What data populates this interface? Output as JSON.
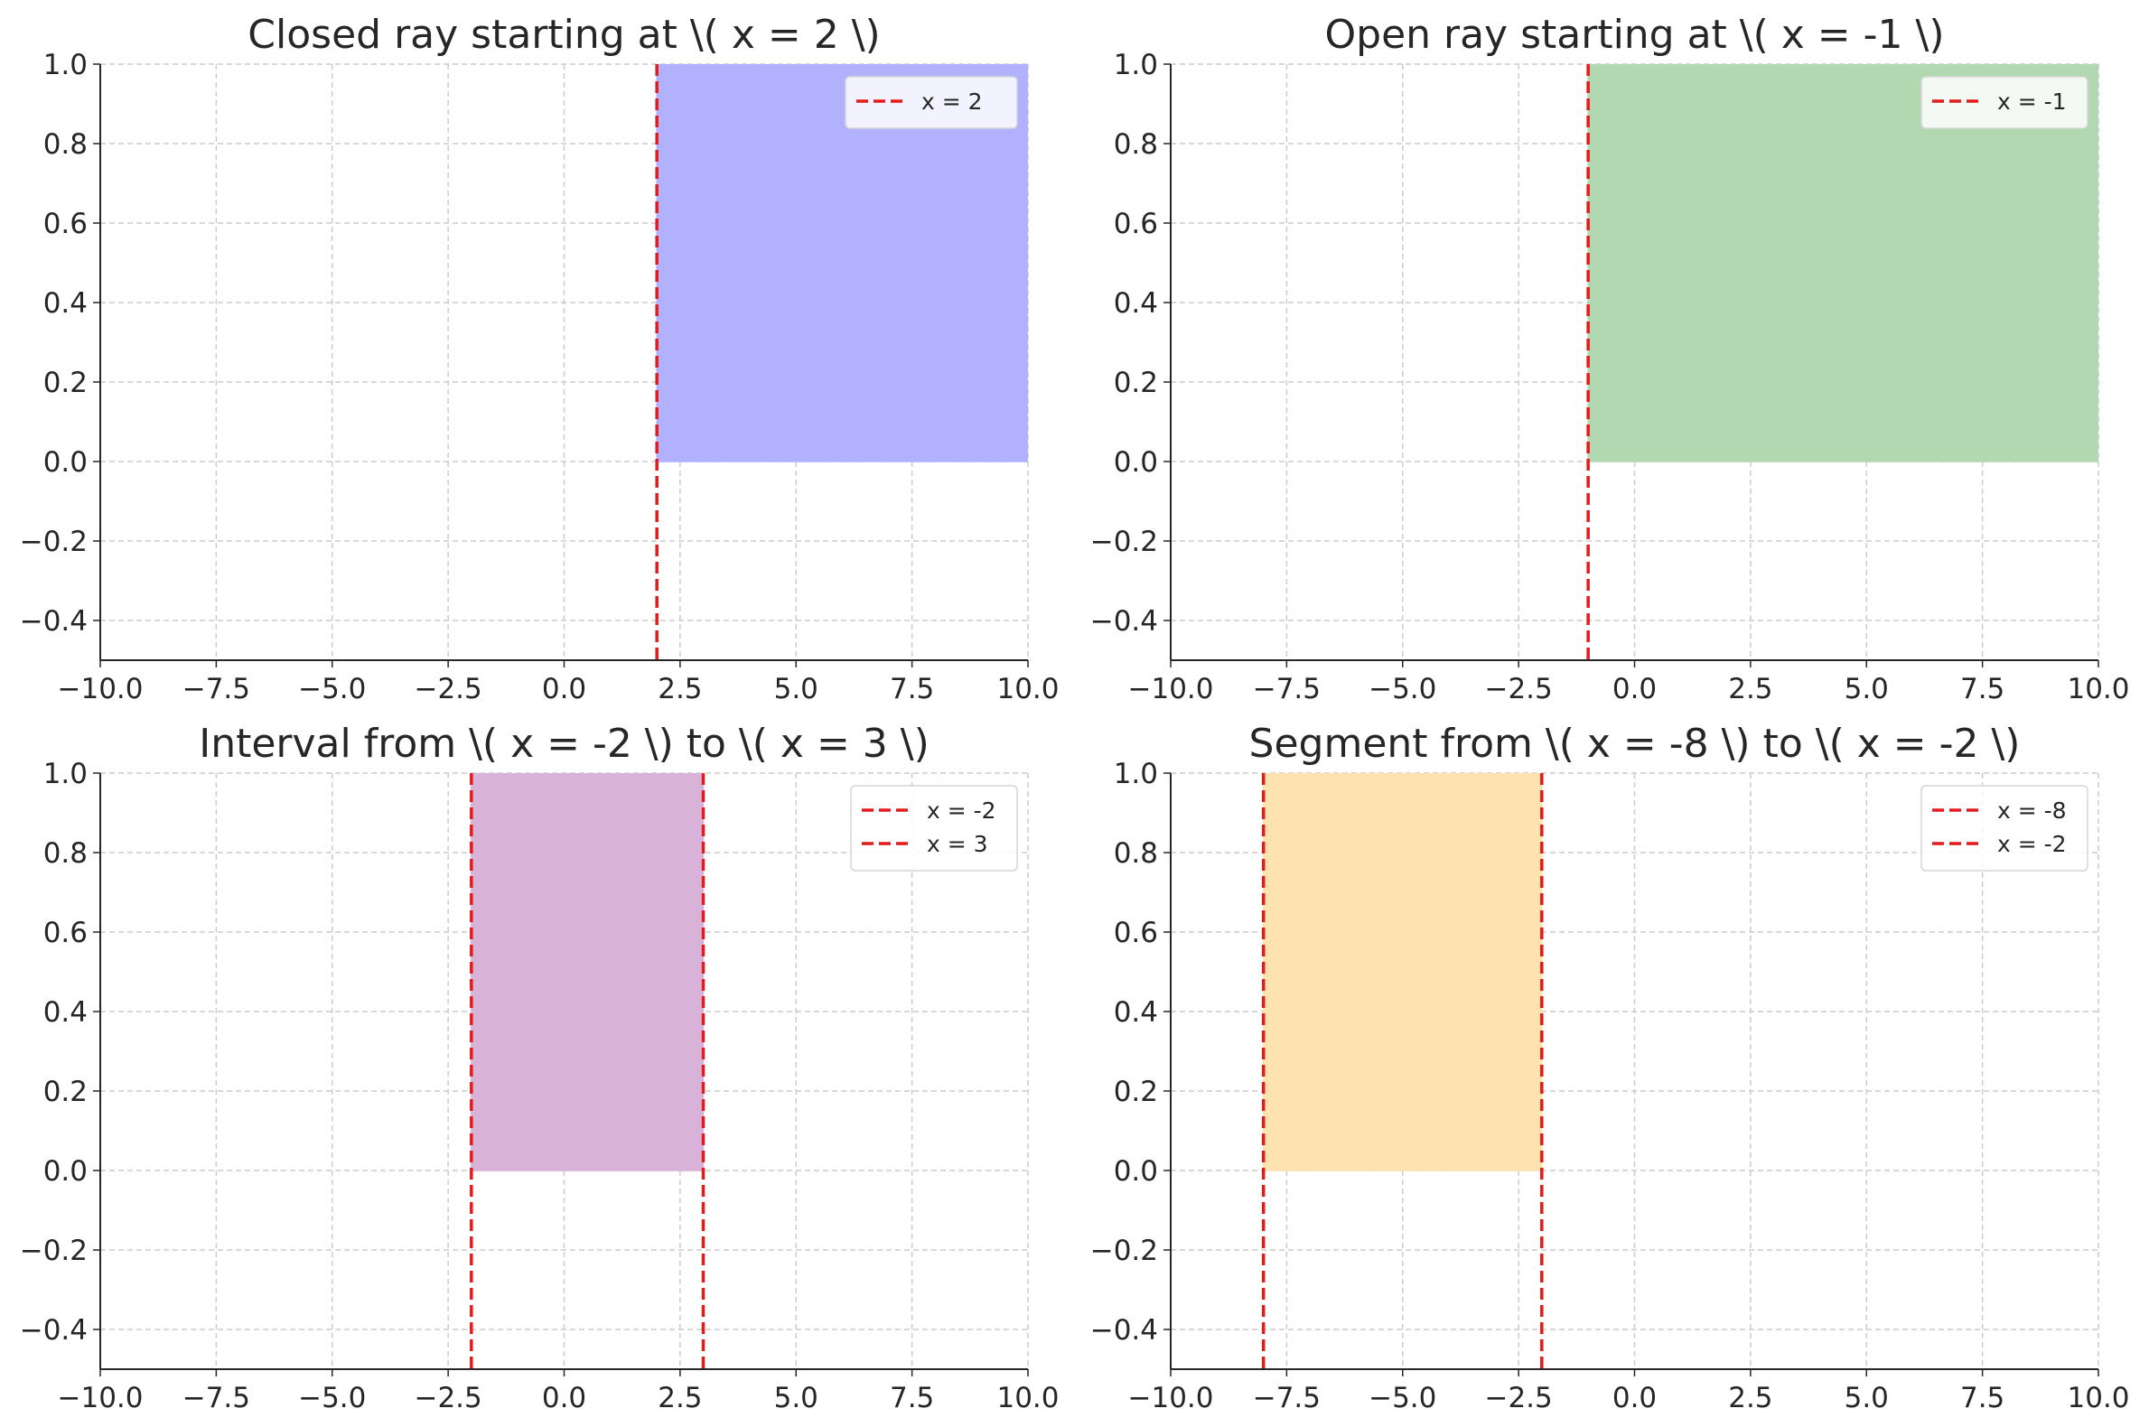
{
  "chart_data": [
    {
      "type": "area",
      "title": "Closed ray starting at \\( x = 2 \\)",
      "xlim": [
        -10,
        10
      ],
      "ylim": [
        -0.5,
        1.0
      ],
      "xticks": [
        -10.0,
        -7.5,
        -5.0,
        -2.5,
        0.0,
        2.5,
        5.0,
        7.5,
        10.0
      ],
      "xtick_labels": [
        "−10.0",
        "−7.5",
        "−5.0",
        "−2.5",
        "0.0",
        "2.5",
        "5.0",
        "7.5",
        "10.0"
      ],
      "yticks": [
        -0.4,
        -0.2,
        0.0,
        0.2,
        0.4,
        0.6,
        0.8,
        1.0
      ],
      "ytick_labels": [
        "−0.4",
        "−0.2",
        "0.0",
        "0.2",
        "0.4",
        "0.6",
        "0.8",
        "1.0"
      ],
      "grid": true,
      "legend_position": "top-right",
      "shaded_region": {
        "x_start": 2,
        "x_end": 10,
        "y_start": 0,
        "y_end": 1,
        "color": "#b1b1fe"
      },
      "vertical_lines": [
        {
          "x": 2,
          "label": "x = 2",
          "color": "#e41b1b"
        }
      ]
    },
    {
      "type": "area",
      "title": "Open ray starting at \\( x = -1 \\)",
      "xlim": [
        -10,
        10
      ],
      "ylim": [
        -0.5,
        1.0
      ],
      "xticks": [
        -10.0,
        -7.5,
        -5.0,
        -2.5,
        0.0,
        2.5,
        5.0,
        7.5,
        10.0
      ],
      "xtick_labels": [
        "−10.0",
        "−7.5",
        "−5.0",
        "−2.5",
        "0.0",
        "2.5",
        "5.0",
        "7.5",
        "10.0"
      ],
      "yticks": [
        -0.4,
        -0.2,
        0.0,
        0.2,
        0.4,
        0.6,
        0.8,
        1.0
      ],
      "ytick_labels": [
        "−0.4",
        "−0.2",
        "0.0",
        "0.2",
        "0.4",
        "0.6",
        "0.8",
        "1.0"
      ],
      "grid": true,
      "legend_position": "top-right",
      "shaded_region": {
        "x_start": -1,
        "x_end": 10,
        "y_start": 0,
        "y_end": 1,
        "color": "#b2d8b2"
      },
      "vertical_lines": [
        {
          "x": -1,
          "label": "x = -1",
          "color": "#e41b1b"
        }
      ]
    },
    {
      "type": "area",
      "title": "Interval from \\( x = -2 \\) to \\( x = 3 \\)",
      "xlim": [
        -10,
        10
      ],
      "ylim": [
        -0.5,
        1.0
      ],
      "xticks": [
        -10.0,
        -7.5,
        -5.0,
        -2.5,
        0.0,
        2.5,
        5.0,
        7.5,
        10.0
      ],
      "xtick_labels": [
        "−10.0",
        "−7.5",
        "−5.0",
        "−2.5",
        "0.0",
        "2.5",
        "5.0",
        "7.5",
        "10.0"
      ],
      "yticks": [
        -0.4,
        -0.2,
        0.0,
        0.2,
        0.4,
        0.6,
        0.8,
        1.0
      ],
      "ytick_labels": [
        "−0.4",
        "−0.2",
        "0.0",
        "0.2",
        "0.4",
        "0.6",
        "0.8",
        "1.0"
      ],
      "grid": true,
      "legend_position": "top-right",
      "shaded_region": {
        "x_start": -2,
        "x_end": 3,
        "y_start": 0,
        "y_end": 1,
        "color": "#d8b2d8"
      },
      "vertical_lines": [
        {
          "x": -2,
          "label": "x = -2",
          "color": "#e41b1b"
        },
        {
          "x": 3,
          "label": "x = 3",
          "color": "#e41b1b"
        }
      ]
    },
    {
      "type": "area",
      "title": "Segment from \\( x = -8 \\) to \\( x = -2 \\)",
      "xlim": [
        -10,
        10
      ],
      "ylim": [
        -0.5,
        1.0
      ],
      "xticks": [
        -10.0,
        -7.5,
        -5.0,
        -2.5,
        0.0,
        2.5,
        5.0,
        7.5,
        10.0
      ],
      "xtick_labels": [
        "−10.0",
        "−7.5",
        "−5.0",
        "−2.5",
        "0.0",
        "2.5",
        "5.0",
        "7.5",
        "10.0"
      ],
      "yticks": [
        -0.4,
        -0.2,
        0.0,
        0.2,
        0.4,
        0.6,
        0.8,
        1.0
      ],
      "ytick_labels": [
        "−0.4",
        "−0.2",
        "0.0",
        "0.2",
        "0.4",
        "0.6",
        "0.8",
        "1.0"
      ],
      "grid": true,
      "legend_position": "top-right",
      "shaded_region": {
        "x_start": -8,
        "x_end": -2,
        "y_start": 0,
        "y_end": 1,
        "color": "#fee3b1"
      },
      "vertical_lines": [
        {
          "x": -8,
          "label": "x = -8",
          "color": "#e41b1b"
        },
        {
          "x": -2,
          "label": "x = -2",
          "color": "#e41b1b"
        }
      ]
    }
  ]
}
